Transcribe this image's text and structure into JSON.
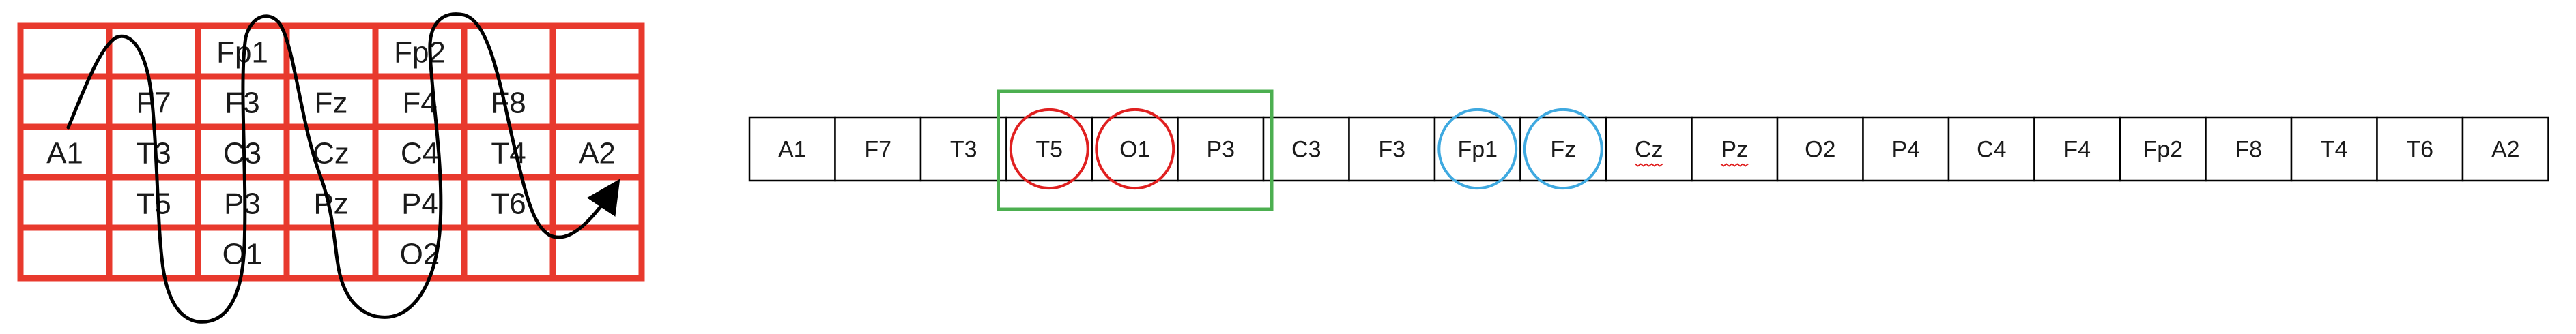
{
  "grid": {
    "rows": 5,
    "cols": 7,
    "line_color": "#e8392d",
    "labels": [
      {
        "text": "Fp1",
        "row": 0,
        "col": 2
      },
      {
        "text": "Fp2",
        "row": 0,
        "col": 4
      },
      {
        "text": "F7",
        "row": 1,
        "col": 1
      },
      {
        "text": "F3",
        "row": 1,
        "col": 2
      },
      {
        "text": "Fz",
        "row": 1,
        "col": 3
      },
      {
        "text": "F4",
        "row": 1,
        "col": 4
      },
      {
        "text": "F8",
        "row": 1,
        "col": 5
      },
      {
        "text": "A1",
        "row": 2,
        "col": 0
      },
      {
        "text": "T3",
        "row": 2,
        "col": 1
      },
      {
        "text": "C3",
        "row": 2,
        "col": 2
      },
      {
        "text": "Cz",
        "row": 2,
        "col": 3
      },
      {
        "text": "C4",
        "row": 2,
        "col": 4
      },
      {
        "text": "T4",
        "row": 2,
        "col": 5
      },
      {
        "text": "A2",
        "row": 2,
        "col": 6
      },
      {
        "text": "T5",
        "row": 3,
        "col": 1
      },
      {
        "text": "P3",
        "row": 3,
        "col": 2
      },
      {
        "text": "Pz",
        "row": 3,
        "col": 3
      },
      {
        "text": "P4",
        "row": 3,
        "col": 4
      },
      {
        "text": "T6",
        "row": 3,
        "col": 5
      },
      {
        "text": "O1",
        "row": 4,
        "col": 2
      },
      {
        "text": "O2",
        "row": 4,
        "col": 4
      }
    ]
  },
  "sequence": {
    "labels": [
      "A1",
      "F7",
      "T3",
      "T5",
      "O1",
      "P3",
      "C3",
      "F3",
      "Fp1",
      "Fz",
      "Cz",
      "Pz",
      "O2",
      "P4",
      "C4",
      "F4",
      "Fp2",
      "F8",
      "T4",
      "T6",
      "A2"
    ],
    "red_circled": [
      3,
      4
    ],
    "blue_circled": [
      8,
      9
    ],
    "green_box_span": [
      3,
      5
    ],
    "spellcheck_underlined": [
      10,
      11
    ],
    "colors": {
      "cell_border": "#000000",
      "red_circle": "#e02020",
      "blue_circle": "#3fa9e0",
      "green_box": "#4caf50",
      "spellcheck": "#e02020"
    }
  },
  "path": {
    "stroke": "#000000"
  }
}
